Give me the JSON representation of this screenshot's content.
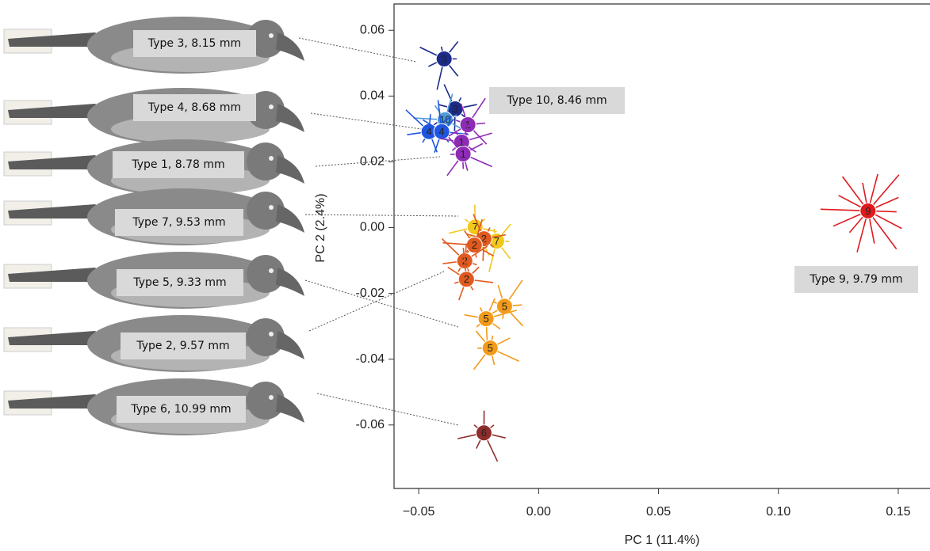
{
  "chart_data": {
    "type": "scatter",
    "x_label": "PC 1 (11.4%)",
    "y_label": "PC 2 (2.4%)",
    "xlim": [
      -0.0603,
      0.1639
    ],
    "ylim": [
      -0.0793,
      0.068
    ],
    "xticks": [
      {
        "value": -0.05,
        "label": "−0.05"
      },
      {
        "value": 0,
        "label": "0.00"
      },
      0.05,
      {
        "value": 0.1,
        "label": "0.10"
      },
      0.15
    ],
    "yticks": [
      0.06,
      0.04,
      0.02,
      {
        "value": 0,
        "label": "0.00"
      },
      -0.02,
      -0.04,
      -0.06
    ],
    "series": [
      {
        "name": "3",
        "color": "#1c2a8a",
        "x": [
          -0.0394,
          -0.0348
        ],
        "y": [
          0.0513,
          0.0361
        ]
      },
      {
        "name": "10",
        "color": "#4f9ad8",
        "x": [
          -0.039
        ],
        "y": [
          0.0328
        ]
      },
      {
        "name": "4",
        "color": "#1f55e0",
        "x": [
          -0.0457,
          -0.0404
        ],
        "y": [
          0.0292,
          0.0292
        ]
      },
      {
        "name": "1",
        "color": "#8e2bb5",
        "x": [
          -0.0295,
          -0.0321,
          -0.0315
        ],
        "y": [
          0.0313,
          0.026,
          0.0224
        ]
      },
      {
        "name": "7",
        "color": "#f2c81c",
        "x": [
          -0.0265,
          -0.0175
        ],
        "y": [
          0.0002,
          -0.0041
        ]
      },
      {
        "name": "2",
        "color": "#e05a20",
        "x": [
          -0.0228,
          -0.0268,
          -0.0308,
          -0.0301
        ],
        "y": [
          -0.0034,
          -0.0053,
          -0.0101,
          -0.0157
        ]
      },
      {
        "name": "5",
        "color": "#f29a1a",
        "x": [
          -0.0142,
          -0.0219,
          -0.0202
        ],
        "y": [
          -0.0239,
          -0.0277,
          -0.0366
        ]
      },
      {
        "name": "6",
        "color": "#8f2d2d",
        "x": [
          -0.0228
        ],
        "y": [
          -0.0624
        ]
      },
      {
        "name": "9",
        "color": "#e01b1e",
        "x": [
          0.1374
        ],
        "y": [
          0.0051
        ]
      }
    ],
    "annotations": [
      "Type 3, 8.15 mm",
      "Type 4, 8.68 mm",
      "Type 1, 8.78 mm",
      "Type 7, 9.53 mm",
      "Type 5, 9.33 mm",
      "Type 2, 9.57 mm",
      "Type 6, 10.99 mm",
      "Type 10, 8.46 mm",
      "Type 9, 9.79 mm"
    ]
  }
}
